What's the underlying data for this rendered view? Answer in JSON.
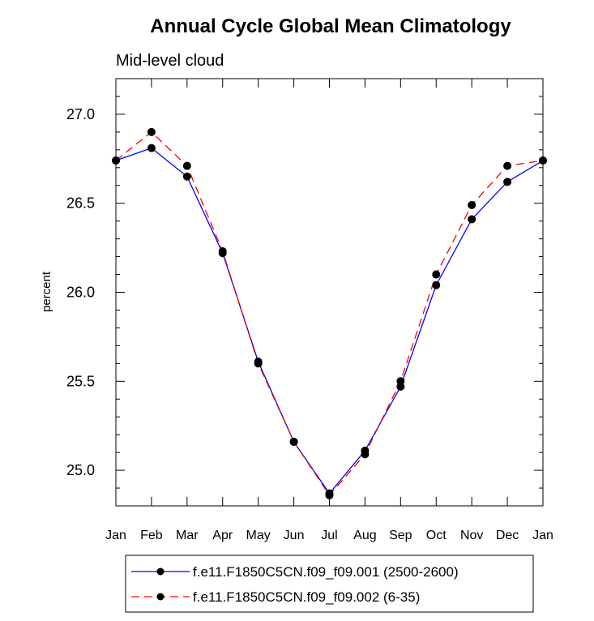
{
  "chart_data": {
    "type": "line",
    "title": "Annual Cycle Global Mean Climatology",
    "subtitle": "Mid-level cloud",
    "xlabel": "",
    "ylabel": "percent",
    "categories": [
      "Jan",
      "Feb",
      "Mar",
      "Apr",
      "May",
      "Jun",
      "Jul",
      "Aug",
      "Sep",
      "Oct",
      "Nov",
      "Dec",
      "Jan"
    ],
    "ylim": [
      24.8,
      27.2
    ],
    "yticks": [
      25.0,
      25.5,
      26.0,
      26.5,
      27.0
    ],
    "ytick_labels": [
      "25.0",
      "25.5",
      "26.0",
      "26.5",
      "27.0"
    ],
    "grid": false,
    "legend_position": "bottom",
    "series": [
      {
        "name": "f.e11.F1850C5CN.f09_f09.001 (2500-2600)",
        "color": "#0000ff",
        "dash": "solid",
        "values": [
          26.74,
          26.81,
          26.65,
          26.22,
          25.61,
          25.16,
          24.87,
          25.11,
          25.47,
          26.04,
          26.41,
          26.62,
          26.74
        ]
      },
      {
        "name": "f.e11.F1850C5CN.f09_f09.002 (6-35)",
        "color": "#ff0000",
        "dash": "dashed",
        "values": [
          26.74,
          26.9,
          26.71,
          26.23,
          25.6,
          25.16,
          24.86,
          25.09,
          25.5,
          26.1,
          26.49,
          26.71,
          26.74
        ]
      }
    ]
  }
}
